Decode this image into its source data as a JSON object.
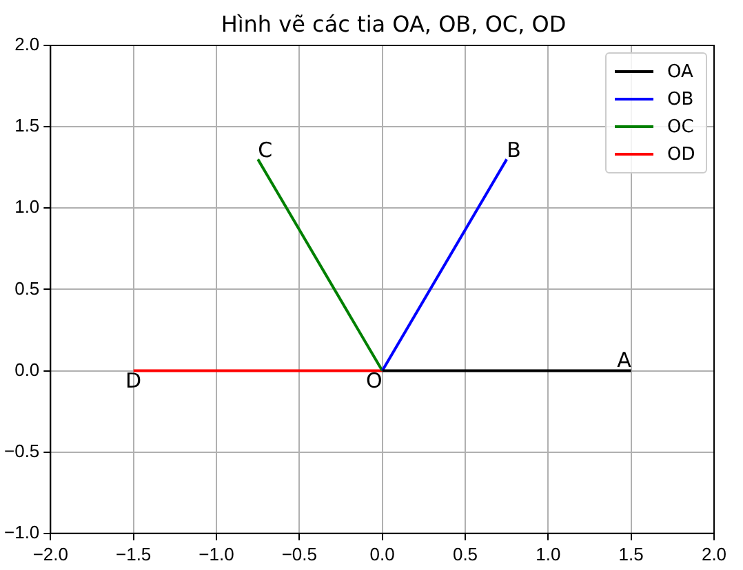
{
  "chart_data": {
    "type": "line",
    "title": "Hình vẽ các tia OA, OB, OC, OD",
    "series": [
      {
        "name": "OA",
        "color": "#000000",
        "x": [
          0,
          1.5
        ],
        "values": [
          0,
          0
        ]
      },
      {
        "name": "OB",
        "color": "#0000ff",
        "x": [
          0,
          0.75
        ],
        "values": [
          0,
          1.3
        ]
      },
      {
        "name": "OC",
        "color": "#008000",
        "x": [
          0,
          -0.75
        ],
        "values": [
          0,
          1.3
        ]
      },
      {
        "name": "OD",
        "color": "#ff0000",
        "x": [
          0,
          -1.5
        ],
        "values": [
          0,
          0
        ]
      }
    ],
    "annotations": [
      {
        "text": "A",
        "x": 1.5,
        "y": 0
      },
      {
        "text": "B",
        "x": 0.75,
        "y": 1.3
      },
      {
        "text": "C",
        "x": -0.75,
        "y": 1.3
      },
      {
        "text": "D",
        "x": -1.5,
        "y": 0
      },
      {
        "text": "O",
        "x": 0,
        "y": 0
      }
    ],
    "xlim": [
      -2,
      2
    ],
    "ylim": [
      -1,
      2
    ],
    "xticks": [
      {
        "value": -2,
        "label": "−2.0"
      },
      {
        "value": -1.5,
        "label": "−1.5"
      },
      {
        "value": -1,
        "label": "−1.0"
      },
      {
        "value": -0.5,
        "label": "−0.5"
      },
      {
        "value": 0,
        "label": "0.0"
      },
      {
        "value": 0.5,
        "label": "0.5"
      },
      {
        "value": 1,
        "label": "1.0"
      },
      {
        "value": 1.5,
        "label": "1.5"
      },
      {
        "value": 2,
        "label": "2.0"
      }
    ],
    "yticks": [
      {
        "value": -1,
        "label": "−1.0"
      },
      {
        "value": -0.5,
        "label": "−0.5"
      },
      {
        "value": 0,
        "label": "0.0"
      },
      {
        "value": 0.5,
        "label": "0.5"
      },
      {
        "value": 1,
        "label": "1.0"
      },
      {
        "value": 1.5,
        "label": "1.5"
      },
      {
        "value": 2,
        "label": "2.0"
      }
    ],
    "grid": true,
    "legend": "top right",
    "marker": "none",
    "line_style": "solid"
  }
}
